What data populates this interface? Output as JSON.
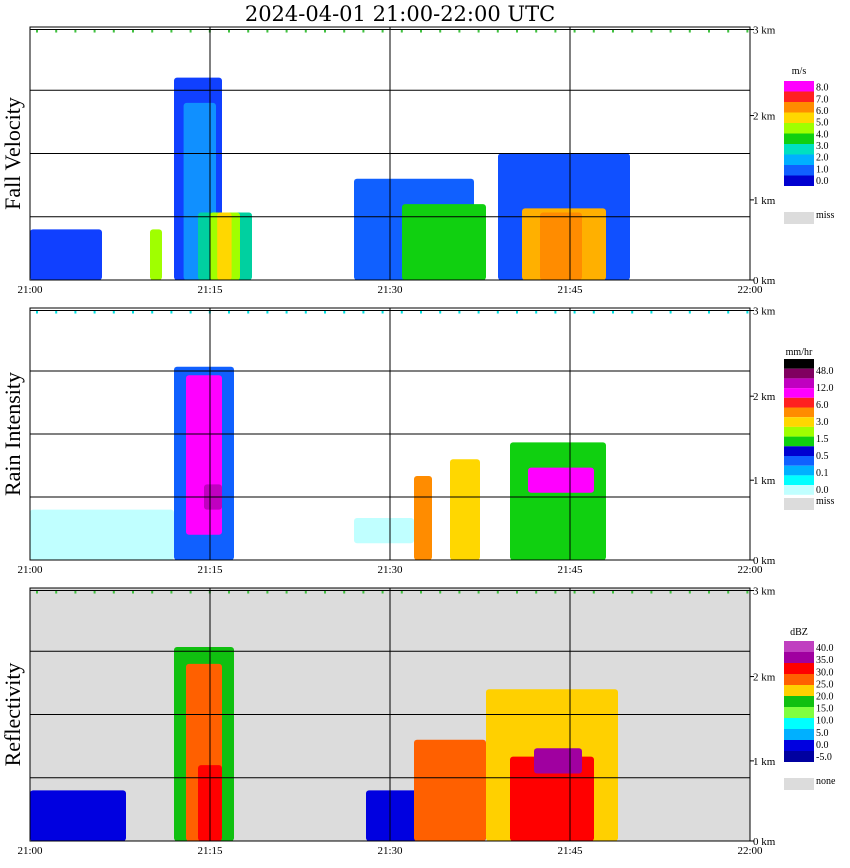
{
  "title": "2024-04-01   21:00-22:00 UTC",
  "colors": {
    "missing": "#dcdcdc",
    "grid": "#000000"
  },
  "chart_data": [
    {
      "type": "heatmap",
      "ylabel": "Fall Velocity",
      "x_ticks": [
        "21:00",
        "21:15",
        "21:30",
        "21:45",
        "22:00"
      ],
      "y_ticks": [
        "0 km",
        "1 km",
        "2 km",
        "3 km"
      ],
      "ylim_km": [
        0,
        3
      ],
      "background": "#ffffff",
      "legend": {
        "unit": "m/s",
        "labels": [
          "8.0",
          "7.0",
          "6.0",
          "5.0",
          "4.0",
          "3.0",
          "2.0",
          "1.0",
          "0.0"
        ],
        "colors": [
          "#ff00ff",
          "#ff2020",
          "#ff8c00",
          "#ffd700",
          "#a0ff00",
          "#10d010",
          "#00e0c0",
          "#00b0ff",
          "#1060ff",
          "#0000d0"
        ],
        "miss_label": "miss"
      }
    },
    {
      "type": "heatmap",
      "ylabel": "Rain Intensity",
      "x_ticks": [
        "21:00",
        "21:15",
        "21:30",
        "21:45",
        "22:00"
      ],
      "y_ticks": [
        "0 km",
        "1 km",
        "2 km",
        "3 km"
      ],
      "ylim_km": [
        0,
        3
      ],
      "background": "#ffffff",
      "legend": {
        "unit": "mm/hr",
        "labels": [
          "48.0",
          "12.0",
          "6.0",
          "3.0",
          "1.5",
          "0.5",
          "0.1",
          "0.0"
        ],
        "colors": [
          "#000000",
          "#800060",
          "#c000c0",
          "#ff00ff",
          "#ff2020",
          "#ff8c00",
          "#ffd700",
          "#a0ff00",
          "#10d010",
          "#0000d0",
          "#1060ff",
          "#00b0ff",
          "#00ffff",
          "#c0ffff"
        ],
        "miss_label": "miss"
      }
    },
    {
      "type": "heatmap",
      "ylabel": "Reflectivity",
      "x_ticks": [
        "21:00",
        "21:15",
        "21:30",
        "21:45",
        "22:00"
      ],
      "y_ticks": [
        "0 km",
        "1 km",
        "2 km",
        "3 km"
      ],
      "ylim_km": [
        0,
        3
      ],
      "background": "#dcdcdc",
      "legend": {
        "unit": "dBZ",
        "labels": [
          "40.0",
          "35.0",
          "30.0",
          "25.0",
          "20.0",
          "15.0",
          "10.0",
          "5.0",
          "0.0",
          "-5.0"
        ],
        "colors": [
          "#c040c0",
          "#a000a0",
          "#ff0000",
          "#ff6000",
          "#ffd000",
          "#10c010",
          "#80ff40",
          "#00ffff",
          "#00b0ff",
          "#0000e0",
          "#0000a0"
        ],
        "miss_label": "none"
      }
    }
  ]
}
